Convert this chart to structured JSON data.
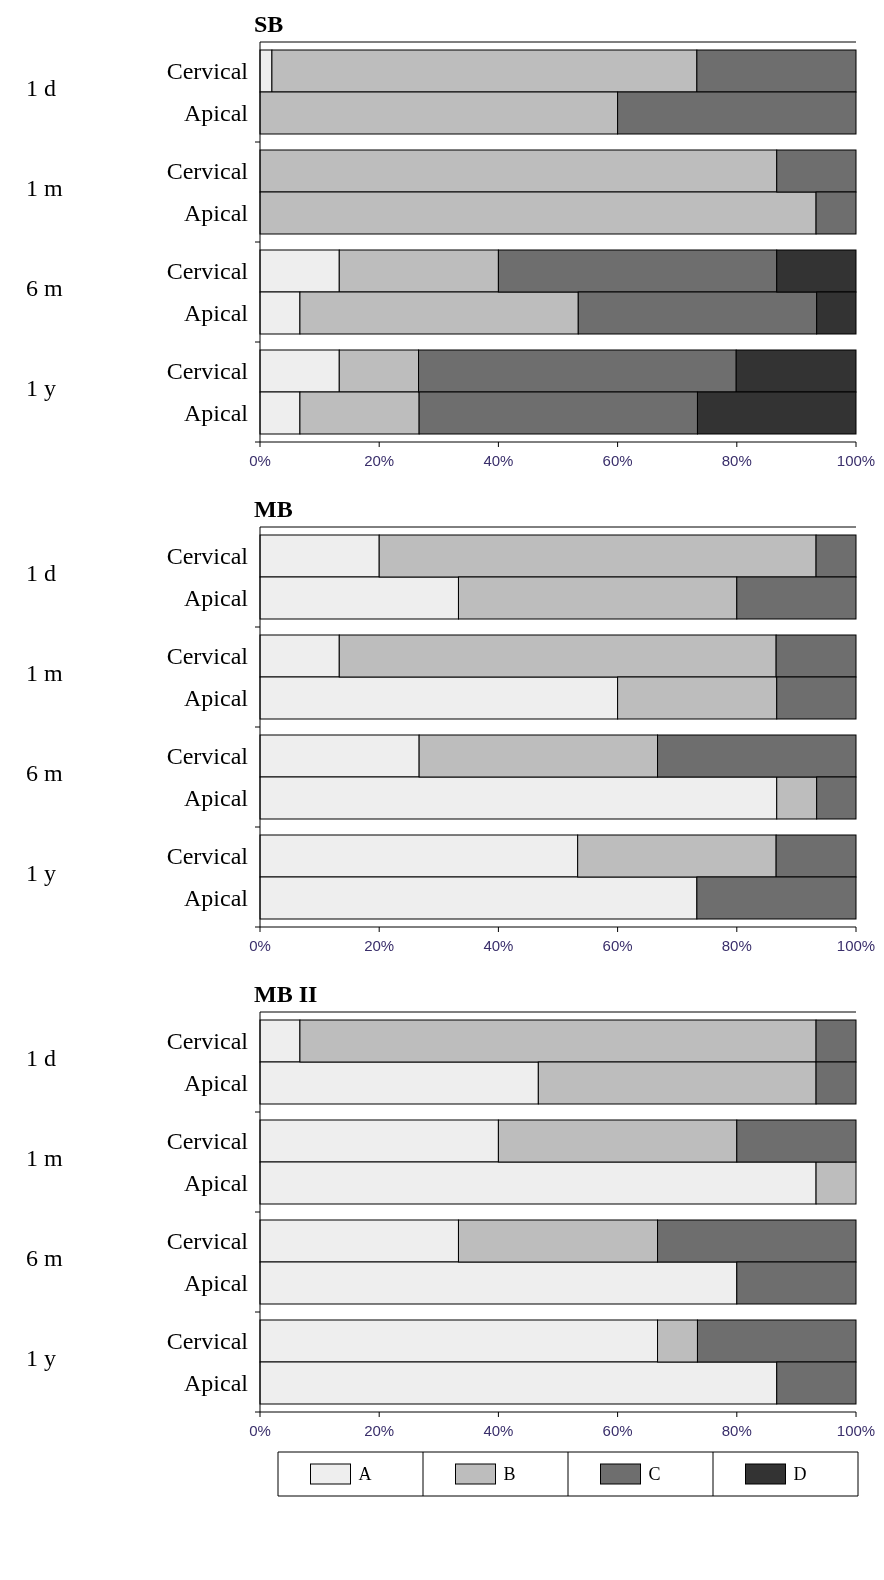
{
  "chart_data": [
    {
      "type": "bar",
      "title": "SB",
      "orientation": "horizontal",
      "stacked": true,
      "categories": [
        "Cervical",
        "Apical",
        "Cervical",
        "Apical",
        "Cervical",
        "Apical",
        "Cervical",
        "Apical"
      ],
      "annotations": [
        "1 d",
        "1 m",
        "6 m",
        "1 y"
      ],
      "xlim": [
        0,
        100
      ],
      "xticks": [
        {
          "value": 0,
          "label": "0%"
        },
        {
          "value": 20,
          "label": "20%"
        },
        {
          "value": 40,
          "label": "40%"
        },
        {
          "value": 60,
          "label": "60%"
        },
        {
          "value": 80,
          "label": "80%"
        },
        {
          "value": 100,
          "label": "100%"
        }
      ],
      "series": [
        {
          "color": "#eeeeee",
          "values": [
            2,
            0,
            0,
            0,
            13.3,
            6.7,
            13.3,
            6.7
          ]
        },
        {
          "color": "#bdbdbd",
          "values": [
            71.3,
            60,
            86.7,
            93.3,
            26.7,
            46.7,
            13.3,
            20
          ]
        },
        {
          "color": "#6e6e6e",
          "values": [
            26.7,
            40,
            13.3,
            6.7,
            46.7,
            40,
            53.3,
            46.7
          ]
        },
        {
          "color": "#333333",
          "values": [
            0,
            0,
            0,
            0,
            13.3,
            6.6,
            20.1,
            26.6
          ]
        }
      ]
    },
    {
      "type": "bar",
      "title": "MB",
      "orientation": "horizontal",
      "stacked": true,
      "categories": [
        "Cervical",
        "Apical",
        "Cervical",
        "Apical",
        "Cervical",
        "Apical",
        "Cervical",
        "Apical"
      ],
      "annotations": [
        "1 d",
        "1 m",
        "6 m",
        "1 y"
      ],
      "xlim": [
        0,
        100
      ],
      "xticks": [
        {
          "value": 0,
          "label": "0%"
        },
        {
          "value": 20,
          "label": "20%"
        },
        {
          "value": 40,
          "label": "40%"
        },
        {
          "value": 60,
          "label": "60%"
        },
        {
          "value": 80,
          "label": "80%"
        },
        {
          "value": 100,
          "label": "100%"
        }
      ],
      "series": [
        {
          "color": "#eeeeee",
          "values": [
            20,
            33.3,
            13.3,
            60,
            26.7,
            86.7,
            53.3,
            73.3
          ]
        },
        {
          "color": "#bdbdbd",
          "values": [
            73.3,
            46.7,
            73.3,
            26.7,
            40,
            6.7,
            33.3,
            0
          ]
        },
        {
          "color": "#6e6e6e",
          "values": [
            6.7,
            20,
            13.4,
            13.3,
            33.3,
            6.6,
            13.4,
            26.7
          ]
        }
      ]
    },
    {
      "type": "bar",
      "title": "MB II",
      "orientation": "horizontal",
      "stacked": true,
      "legend": "bottom",
      "categories": [
        "Cervical",
        "Apical",
        "Cervical",
        "Apical",
        "Cervical",
        "Apical",
        "Cervical",
        "Apical"
      ],
      "annotations": [
        "1 d",
        "1 m",
        "6 m",
        "1 y"
      ],
      "xlim": [
        0,
        100
      ],
      "xticks": [
        {
          "value": 0,
          "label": "0%"
        },
        {
          "value": 20,
          "label": "20%"
        },
        {
          "value": 40,
          "label": "40%"
        },
        {
          "value": 60,
          "label": "60%"
        },
        {
          "value": 80,
          "label": "80%"
        },
        {
          "value": 100,
          "label": "100%"
        }
      ],
      "series": [
        {
          "name": "A",
          "color": "#eeeeee",
          "values": [
            6.7,
            46.7,
            40,
            93.3,
            33.3,
            80,
            66.7,
            86.7
          ]
        },
        {
          "name": "B",
          "color": "#bdbdbd",
          "values": [
            86.6,
            46.6,
            40,
            6.7,
            33.4,
            0,
            6.7,
            0
          ]
        },
        {
          "name": "C",
          "color": "#6e6e6e",
          "values": [
            6.7,
            6.7,
            20,
            0,
            33.3,
            20,
            26.6,
            13.3
          ]
        },
        {
          "name": "D",
          "color": "#333333",
          "values": [
            0,
            0,
            0,
            0,
            0,
            0,
            0,
            0
          ]
        }
      ]
    }
  ]
}
